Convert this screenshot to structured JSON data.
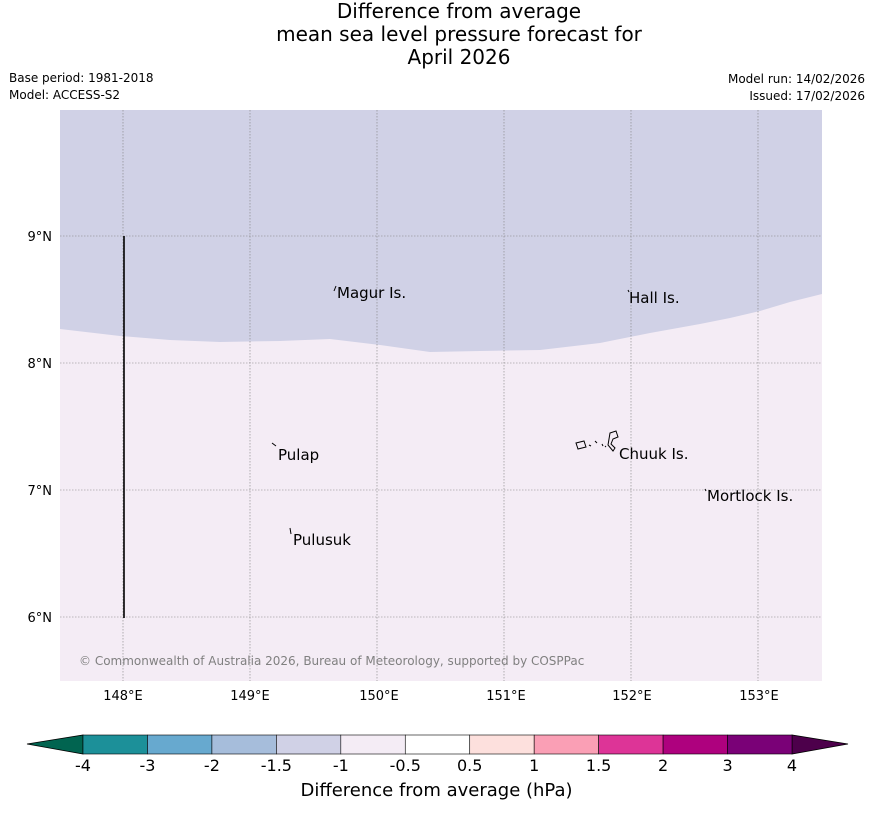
{
  "title": {
    "line1": "Difference from average",
    "line2": "mean sea level pressure forecast for",
    "line3": "April 2026"
  },
  "meta": {
    "base_period": "Base period: 1981-2018",
    "model": "Model: ACCESS-S2",
    "model_run": "Model run: 14/02/2026",
    "issued": "Issued: 17/02/2026"
  },
  "map": {
    "lon_labels": [
      "148°E",
      "149°E",
      "150°E",
      "151°E",
      "152°E",
      "153°E"
    ],
    "lat_labels": [
      "9°N",
      "8°N",
      "7°N",
      "6°N"
    ],
    "places": [
      "Magur Is.",
      "Hall Is.",
      "Pulap",
      "Chuuk Is.",
      "Mortlock Is.",
      "Pulusuk"
    ],
    "copyright": "© Commonwealth of Australia 2026, Bureau of Meteorology, supported by COSPPac",
    "region_colors": {
      "north": "#d0d1e6",
      "south": "#f4ecf5"
    }
  },
  "colorbar": {
    "title": "Difference from average (hPa)",
    "tick_labels": [
      "-4",
      "-3",
      "-2",
      "-1.5",
      "-1",
      "-0.5",
      "0.5",
      "1",
      "1.5",
      "2",
      "3",
      "4"
    ],
    "low_extend_color": "#016450",
    "high_extend_color": "#4d004b",
    "colors": [
      "#1c9099",
      "#67a9cf",
      "#a6bddb",
      "#d0d1e6",
      "#f4ecf5",
      "#ffffff",
      "#fde0dd",
      "#fa9fb5",
      "#dd3497",
      "#ae017e",
      "#7a0177"
    ]
  }
}
